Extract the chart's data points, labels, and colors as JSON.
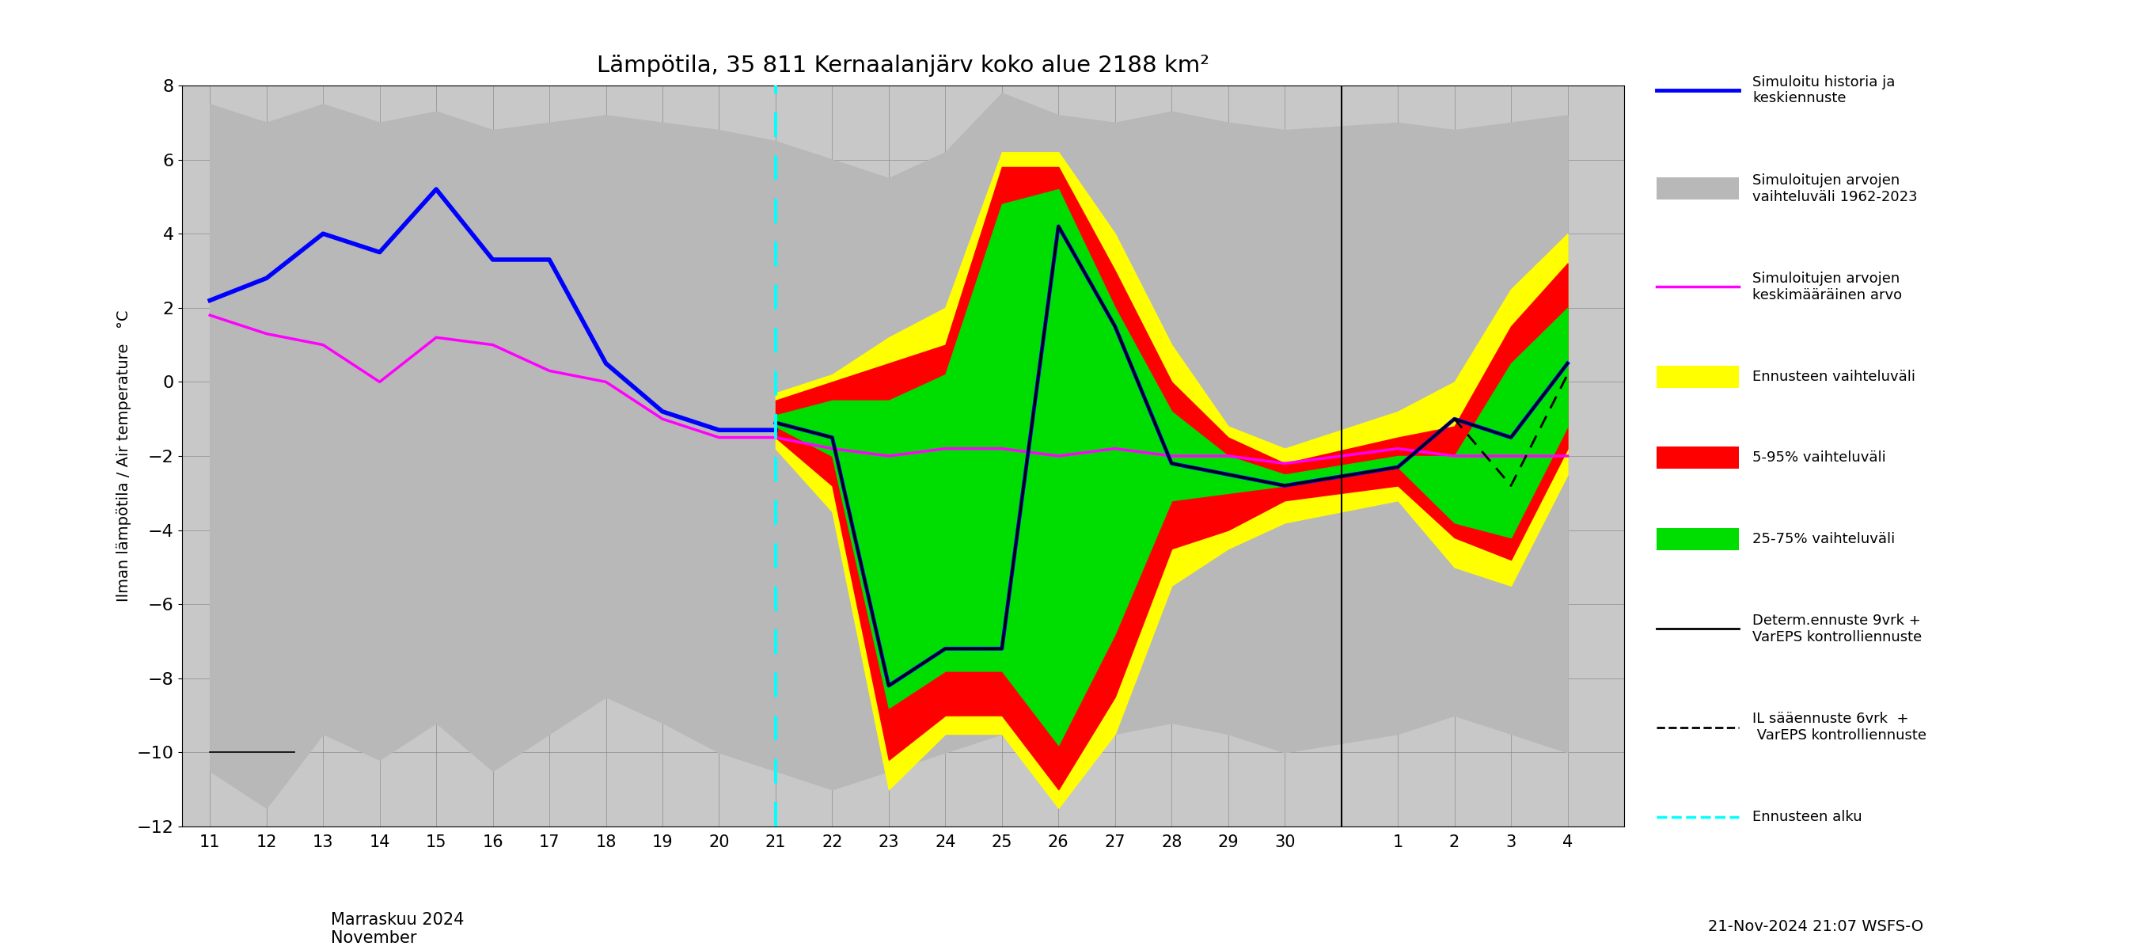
{
  "title": "Lämpötila, 35 811 Kernaalanjärv koko alue 2188 km²",
  "ylabel": "Ilman lämpötila / Air temperature   °C",
  "ylim": [
    -12,
    8
  ],
  "yticks": [
    -12,
    -10,
    -8,
    -6,
    -4,
    -2,
    0,
    2,
    4,
    6,
    8
  ],
  "footer": "21-Nov-2024 21:07 WSFS-O",
  "xlabel": "Marraskuu 2024\nNovember",
  "bg_color": "#c8c8c8",
  "hist_upper": [
    7.5,
    7.0,
    7.5,
    7.0,
    7.3,
    6.8,
    7.0,
    7.2,
    7.0,
    6.8,
    6.5,
    6.0,
    5.5,
    6.2,
    7.8,
    7.2,
    7.0,
    7.3,
    7.0,
    6.8,
    7.0,
    6.8,
    7.0,
    7.2
  ],
  "hist_lower": [
    -10.5,
    -11.5,
    -9.5,
    -10.2,
    -9.2,
    -10.5,
    -9.5,
    -8.5,
    -9.2,
    -10.0,
    -10.5,
    -11.0,
    -10.5,
    -10.0,
    -9.5,
    -10.0,
    -9.5,
    -9.2,
    -9.5,
    -10.0,
    -9.5,
    -9.0,
    -9.5,
    -10.0
  ],
  "blue_hist_y": [
    2.2,
    2.8,
    4.0,
    3.5,
    5.2,
    3.3,
    3.3,
    0.5,
    -0.8,
    -1.3,
    -1.3
  ],
  "pink_y": [
    1.8,
    1.3,
    1.0,
    0.0,
    1.2,
    1.0,
    0.3,
    0.0,
    -1.0,
    -1.5,
    -1.5,
    -1.8,
    -2.0,
    -1.8,
    -1.8,
    -2.0,
    -1.8,
    -2.0,
    -2.0,
    -2.2,
    -1.8,
    -2.0,
    -2.0,
    -2.0
  ],
  "yellow_upper": [
    -0.3,
    0.2,
    1.2,
    2.0,
    6.2,
    6.2,
    4.0,
    1.0,
    -1.2,
    -1.8,
    -0.8,
    0.0,
    2.5,
    4.0
  ],
  "yellow_lower": [
    -1.8,
    -3.5,
    -11.0,
    -9.5,
    -9.5,
    -11.5,
    -9.5,
    -5.5,
    -4.5,
    -3.8,
    -3.2,
    -5.0,
    -5.5,
    -2.5
  ],
  "red_upper": [
    -0.5,
    0.0,
    0.5,
    1.0,
    5.8,
    5.8,
    3.0,
    0.0,
    -1.5,
    -2.2,
    -1.5,
    -1.2,
    1.5,
    3.2
  ],
  "red_lower": [
    -1.5,
    -2.8,
    -10.2,
    -9.0,
    -9.0,
    -11.0,
    -8.5,
    -4.5,
    -4.0,
    -3.2,
    -2.8,
    -4.2,
    -4.8,
    -1.8
  ],
  "green_upper": [
    -0.9,
    -0.5,
    -0.5,
    0.2,
    4.8,
    5.2,
    2.0,
    -0.8,
    -2.0,
    -2.5,
    -2.0,
    -2.0,
    0.5,
    2.0
  ],
  "green_lower": [
    -1.2,
    -2.0,
    -8.8,
    -7.8,
    -7.8,
    -9.8,
    -6.8,
    -3.2,
    -3.0,
    -2.8,
    -2.3,
    -3.8,
    -4.2,
    -1.2
  ],
  "black_solid_y": [
    -1.1,
    -1.5,
    -8.2,
    -7.2,
    -7.2,
    4.2,
    1.5,
    -2.2,
    -2.5,
    -2.8,
    -2.3,
    -1.0,
    -1.5,
    0.5
  ],
  "black_dashed_y": [
    -1.1,
    -1.5,
    -8.2,
    -7.2,
    -7.2,
    4.2,
    1.5,
    -2.2,
    -2.5,
    -2.8,
    -2.3,
    -1.0,
    -2.8,
    0.2
  ],
  "blue_fore_y": [
    -1.1,
    -1.5,
    -8.2,
    -7.2,
    -7.2,
    4.2,
    1.5,
    -2.2,
    -2.5,
    -2.8,
    -2.3,
    -1.0,
    -1.5,
    0.5
  ]
}
